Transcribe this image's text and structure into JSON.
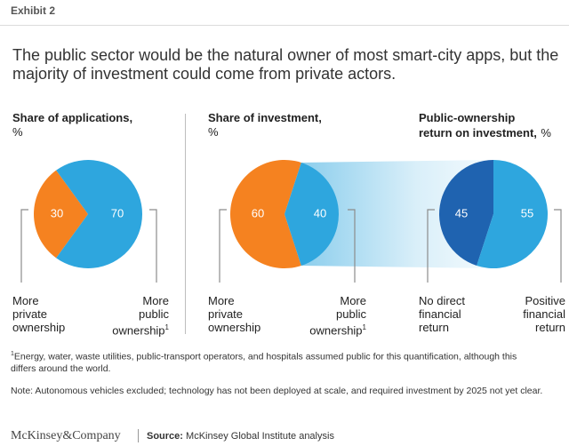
{
  "exhibit": "Exhibit 2",
  "headline": "The public sector would be the natural owner of most smart-city apps, but the majority of investment could come from private actors.",
  "panels": {
    "applications": {
      "title": "Share of applications,",
      "unit": "%",
      "left_label": [
        "More",
        "private",
        "ownership"
      ],
      "right_label": [
        "More",
        "public",
        "ownership"
      ],
      "right_sup": "1"
    },
    "investment": {
      "title": "Share of investment,",
      "unit": "%",
      "left_label": [
        "More",
        "private",
        "ownership"
      ],
      "right_label": [
        "More",
        "public",
        "ownership"
      ],
      "right_sup": "1"
    },
    "return": {
      "title_line1": "Public-ownership",
      "title_line2": "return on investment,",
      "unit": "%",
      "left_label": [
        "No direct",
        "financial",
        "return"
      ],
      "right_label": [
        "Positive",
        "financial",
        "return"
      ]
    }
  },
  "colors": {
    "private_orange": "#f58220",
    "public_blue": "#2ea6de",
    "dark_blue": "#1f63b0",
    "bracket_gray": "#8c8c8c"
  },
  "footnotes": {
    "note1_sup": "1",
    "note1": "Energy, water, waste utilities, public-transport operators, and hospitals assumed public for this quantification, although this differs around the world.",
    "note2": "Note: Autonomous vehicles excluded; technology has not been deployed at scale, and required investment by 2025 not yet clear."
  },
  "footer": {
    "company": "McKinsey&Company",
    "source_label": "Source:",
    "source_text": "McKinsey Global Institute analysis"
  },
  "chart_data": [
    {
      "type": "pie",
      "title": "Share of applications, %",
      "categories": [
        "More private ownership",
        "More public ownership"
      ],
      "values": [
        30,
        70
      ]
    },
    {
      "type": "pie",
      "title": "Share of investment, %",
      "categories": [
        "More private ownership",
        "More public ownership"
      ],
      "values": [
        60,
        40
      ]
    },
    {
      "type": "pie",
      "title": "Public-ownership return on investment, %",
      "categories": [
        "No direct financial return",
        "Positive financial return"
      ],
      "values": [
        45,
        55
      ]
    }
  ]
}
